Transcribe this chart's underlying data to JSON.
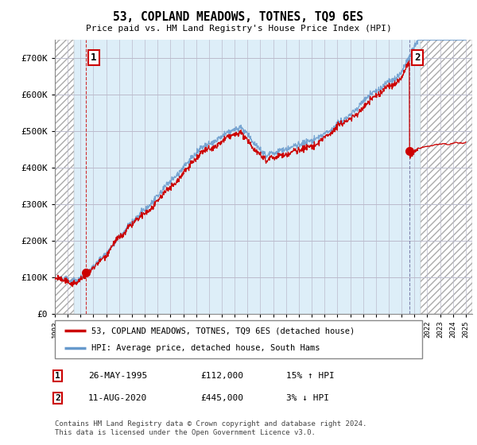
{
  "title": "53, COPLAND MEADOWS, TOTNES, TQ9 6ES",
  "subtitle": "Price paid vs. HM Land Registry's House Price Index (HPI)",
  "legend_line1": "53, COPLAND MEADOWS, TOTNES, TQ9 6ES (detached house)",
  "legend_line2": "HPI: Average price, detached house, South Hams",
  "footnote": "Contains HM Land Registry data © Crown copyright and database right 2024.\nThis data is licensed under the Open Government Licence v3.0.",
  "sale1_label": "1",
  "sale1_date": "26-MAY-1995",
  "sale1_price": "£112,000",
  "sale1_hpi": "15% ↑ HPI",
  "sale2_label": "2",
  "sale2_date": "11-AUG-2020",
  "sale2_price": "£445,000",
  "sale2_hpi": "3% ↓ HPI",
  "hpi_color": "#aac4e0",
  "price_color": "#cc0000",
  "marker_color": "#cc0000",
  "sale1_x_year": 1995.39,
  "sale1_y": 112000,
  "sale2_x_year": 2020.61,
  "sale2_y": 445000,
  "ylim": [
    0,
    750000
  ],
  "yticks": [
    0,
    100000,
    200000,
    300000,
    400000,
    500000,
    600000,
    700000
  ],
  "ytick_labels": [
    "£0",
    "£100K",
    "£200K",
    "£300K",
    "£400K",
    "£500K",
    "£600K",
    "£700K"
  ],
  "xmin": 1993,
  "xmax": 2025.5
}
